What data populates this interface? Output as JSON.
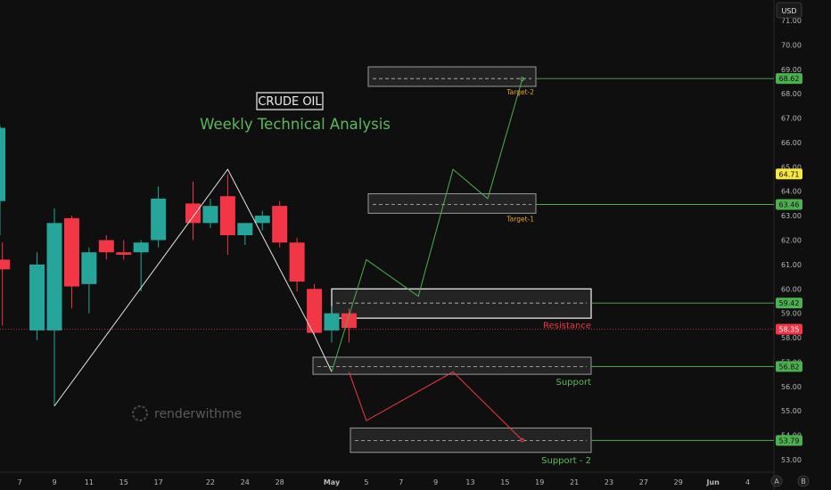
{
  "chart_data": {
    "type": "candlestick",
    "title": "CRUDE OIL",
    "subtitle": "Weekly Technical Analysis",
    "currency": "USD",
    "ylim": [
      52.6,
      71.6
    ],
    "yticks": [
      "53.00",
      "54.00",
      "55.00",
      "56.00",
      "57.00",
      "58.00",
      "59.00",
      "60.00",
      "61.00",
      "62.00",
      "63.00",
      "64.00",
      "65.00",
      "66.00",
      "67.00",
      "68.00",
      "69.00",
      "70.00",
      "71.00"
    ],
    "xticks": [
      "7",
      "9",
      "11",
      "15",
      "17",
      "22",
      "24",
      "28",
      "May",
      "5",
      "7",
      "9",
      "13",
      "15",
      "19",
      "21",
      "23",
      "27",
      "29",
      "Jun",
      "4"
    ],
    "candles": [
      {
        "date": "Apr 3",
        "open": 63.6,
        "high": 66.7,
        "low": 62.2,
        "close": 66.6
      },
      {
        "date": "Apr 4",
        "open": 61.2,
        "high": 61.9,
        "low": 58.5,
        "close": 60.8
      },
      {
        "date": "Apr 8",
        "open": 58.3,
        "high": 61.5,
        "low": 57.9,
        "close": 61.0
      },
      {
        "date": "Apr 9",
        "open": 58.3,
        "high": 63.3,
        "low": 55.2,
        "close": 62.7
      },
      {
        "date": "Apr 10",
        "open": 62.9,
        "high": 63.0,
        "low": 59.2,
        "close": 60.1
      },
      {
        "date": "Apr 11",
        "open": 60.2,
        "high": 61.7,
        "low": 59.0,
        "close": 61.5
      },
      {
        "date": "Apr 14",
        "open": 62.0,
        "high": 62.2,
        "low": 61.2,
        "close": 61.5
      },
      {
        "date": "Apr 15",
        "open": 61.5,
        "high": 62.0,
        "low": 61.2,
        "close": 61.4
      },
      {
        "date": "Apr 16",
        "open": 61.5,
        "high": 62.0,
        "low": 59.9,
        "close": 61.9
      },
      {
        "date": "Apr 17",
        "open": 62.0,
        "high": 64.2,
        "low": 61.7,
        "close": 63.7
      },
      {
        "date": "Apr 21",
        "open": 63.5,
        "high": 64.4,
        "low": 62.0,
        "close": 62.7
      },
      {
        "date": "Apr 22",
        "open": 62.7,
        "high": 63.7,
        "low": 62.5,
        "close": 63.4
      },
      {
        "date": "Apr 23",
        "open": 63.8,
        "high": 64.7,
        "low": 61.4,
        "close": 62.2
      },
      {
        "date": "Apr 24",
        "open": 62.2,
        "high": 62.7,
        "low": 61.8,
        "close": 62.7
      },
      {
        "date": "Apr 25",
        "open": 62.7,
        "high": 63.2,
        "low": 62.4,
        "close": 63.0
      },
      {
        "date": "Apr 28",
        "open": 63.4,
        "high": 63.6,
        "low": 61.7,
        "close": 61.9
      },
      {
        "date": "Apr 29",
        "open": 61.9,
        "high": 62.1,
        "low": 59.9,
        "close": 60.3
      },
      {
        "date": "Apr 30",
        "open": 60.0,
        "high": 60.2,
        "low": 58.1,
        "close": 58.2
      },
      {
        "date": "May 1",
        "open": 58.3,
        "high": 59.3,
        "low": 57.8,
        "close": 59.0
      },
      {
        "date": "May 2",
        "open": 59.0,
        "high": 59.2,
        "low": 57.8,
        "close": 58.4
      }
    ],
    "zones": [
      {
        "name": "Target-2",
        "low": 68.3,
        "high": 69.1,
        "line": 68.62,
        "badge": "68.62",
        "label": "Target-2"
      },
      {
        "name": "Target-1",
        "low": 63.1,
        "high": 63.9,
        "line": 63.46,
        "badge": "63.46",
        "label": "Target-1"
      },
      {
        "name": "Resistance",
        "low": 58.8,
        "high": 60.0,
        "line": 59.42,
        "badge": "59.42",
        "label": "Resistance"
      },
      {
        "name": "Support",
        "low": 56.5,
        "high": 57.2,
        "line": 56.82,
        "badge": "56.82",
        "label": "Support"
      },
      {
        "name": "Support - 2",
        "low": 53.3,
        "high": 54.3,
        "line": 53.79,
        "badge": "53.79",
        "label": "Support - 2"
      }
    ],
    "last_price": {
      "value": 58.35,
      "badge": "58.35"
    },
    "high_marker": {
      "value": 64.71,
      "badge": "64.71"
    },
    "pattern_path": [
      {
        "date": "Apr 9",
        "price": 55.2
      },
      {
        "date": "Apr 23",
        "price": 64.9
      },
      {
        "date": "Apr 30",
        "price": 58.1
      },
      {
        "date": "May 1",
        "price": 56.6
      }
    ],
    "bullish_projection": [
      {
        "date": "May 1",
        "price": 56.6
      },
      {
        "date": "May 5",
        "price": 61.2
      },
      {
        "date": "May 8",
        "price": 59.7
      },
      {
        "date": "May 12",
        "price": 64.9
      },
      {
        "date": "May 14",
        "price": 63.7
      },
      {
        "date": "May 16",
        "price": 68.6
      }
    ],
    "bearish_projection": [
      {
        "date": "May 2",
        "price": 56.6
      },
      {
        "date": "May 5",
        "price": 54.6
      },
      {
        "date": "May 10",
        "price": 56.6
      },
      {
        "date": "May 16",
        "price": 53.8
      }
    ],
    "colors": {
      "up": "#26a69a",
      "down": "#f23645",
      "bullish_line": "#4caf50",
      "bearish_line": "#f23645",
      "pattern_line": "#e8e8e8",
      "target_label": "#e0a040",
      "support_label": "#5cb85c",
      "resistance_label": "#f23645",
      "high_badge": "#f5e642"
    },
    "grid": false,
    "watermark": "renderwithme"
  },
  "price_scale": {
    "currency_button": "USD"
  },
  "bottom_icons": [
    "auto-scale-icon",
    "log-scale-icon"
  ],
  "bottom_icon_labels": [
    "A",
    "B"
  ]
}
